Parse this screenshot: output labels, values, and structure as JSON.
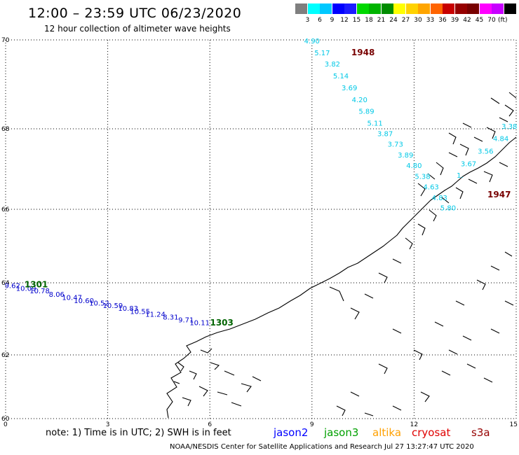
{
  "header": {
    "title": "12:00 – 23:59 UTC 06/23/2020",
    "subtitle": "12 hour collection of altimeter wave heights"
  },
  "legend": {
    "colors": [
      "#7f7f7f",
      "#00ffff",
      "#00c8ff",
      "#0000ff",
      "#1c1cff",
      "#00d800",
      "#00b400",
      "#008c00",
      "#ffff00",
      "#ffd200",
      "#ffa500",
      "#ff6400",
      "#c80000",
      "#960000",
      "#780000",
      "#ff00ff",
      "#c800ff",
      "#000000"
    ],
    "labels": [
      "3",
      "6",
      "9",
      "12",
      "15",
      "18",
      "21",
      "24",
      "27",
      "30",
      "33",
      "36",
      "39",
      "42",
      "45",
      "70"
    ],
    "unit": "(ft)"
  },
  "map": {
    "lon_range": [
      0,
      15
    ],
    "lat_range": [
      60,
      70
    ],
    "lat_ticks": [
      "70",
      "68",
      "66",
      "64",
      "62",
      "60"
    ],
    "lon_ticks": [
      "0",
      "3",
      "6",
      "9",
      "12",
      "15"
    ],
    "grid": "dotted"
  },
  "tracks": [
    {
      "satellite": "jason2",
      "color": "#0000cc",
      "times": [
        {
          "label": "1301",
          "lon": 0.9,
          "lat": 63.87,
          "color": "#006400"
        }
      ],
      "points": [
        {
          "v": "9.62",
          "lon": 0.2,
          "lat": 63.85
        },
        {
          "v": "10.09",
          "lon": 0.6,
          "lat": 63.78
        },
        {
          "v": "10.78",
          "lon": 1.0,
          "lat": 63.71
        },
        {
          "v": "8.06",
          "lon": 1.5,
          "lat": 63.61
        },
        {
          "v": "10.47",
          "lon": 1.95,
          "lat": 63.52
        },
        {
          "v": "10.60",
          "lon": 2.3,
          "lat": 63.44
        },
        {
          "v": "10.52",
          "lon": 2.75,
          "lat": 63.37
        },
        {
          "v": "10.59",
          "lon": 3.15,
          "lat": 63.3
        },
        {
          "v": "10.83",
          "lon": 3.6,
          "lat": 63.22
        },
        {
          "v": "10.55",
          "lon": 3.95,
          "lat": 63.14
        },
        {
          "v": "11.24",
          "lon": 4.4,
          "lat": 63.06
        },
        {
          "v": "8.31",
          "lon": 4.85,
          "lat": 62.98
        },
        {
          "v": "9.71",
          "lon": 5.3,
          "lat": 62.9
        }
      ]
    },
    {
      "satellite": "jason3",
      "color": "#0000cc",
      "times": [
        {
          "label": "1303",
          "lon": 6.35,
          "lat": 62.82,
          "color": "#006400"
        }
      ],
      "points": [
        {
          "v": "10.11",
          "lon": 5.7,
          "lat": 62.83
        }
      ]
    },
    {
      "satellite": "cryosat",
      "color": "#00c8e6",
      "times": [
        {
          "label": "1948",
          "lon": 10.5,
          "lat": 69.65,
          "color": "#780000"
        },
        {
          "label": "1947",
          "lon": 14.5,
          "lat": 66.3,
          "color": "#780000"
        }
      ],
      "points": [
        {
          "v": "4.90",
          "lon": 9.0,
          "lat": 69.92
        },
        {
          "v": "5.17",
          "lon": 9.3,
          "lat": 69.65
        },
        {
          "v": "3.82",
          "lon": 9.6,
          "lat": 69.4
        },
        {
          "v": "5.14",
          "lon": 9.85,
          "lat": 69.13
        },
        {
          "v": "3.69",
          "lon": 10.1,
          "lat": 68.87
        },
        {
          "v": "4.20",
          "lon": 10.4,
          "lat": 68.6
        },
        {
          "v": "5.89",
          "lon": 10.6,
          "lat": 68.34
        },
        {
          "v": "5.11",
          "lon": 10.85,
          "lat": 68.07
        },
        {
          "v": "3.87",
          "lon": 11.15,
          "lat": 67.82
        },
        {
          "v": "3.73",
          "lon": 11.45,
          "lat": 67.56
        },
        {
          "v": "3.89",
          "lon": 11.75,
          "lat": 67.29
        },
        {
          "v": "4.80",
          "lon": 12.0,
          "lat": 67.03
        },
        {
          "v": "5.38",
          "lon": 12.25,
          "lat": 66.76
        },
        {
          "v": "4.63",
          "lon": 12.5,
          "lat": 66.5
        },
        {
          "v": "4.83",
          "lon": 12.75,
          "lat": 66.23
        },
        {
          "v": "5.80",
          "lon": 13.0,
          "lat": 65.97
        }
      ]
    },
    {
      "satellite": "s3a",
      "color": "#00c8e6",
      "times": [],
      "points": [
        {
          "v": "3.38",
          "lon": 14.8,
          "lat": 68.0
        },
        {
          "v": "4.84",
          "lon": 14.55,
          "lat": 67.7
        },
        {
          "v": "3.56",
          "lon": 14.1,
          "lat": 67.38
        },
        {
          "v": "3.67",
          "lon": 13.6,
          "lat": 67.07
        },
        {
          "v": "1.",
          "lon": 13.35,
          "lat": 66.78
        }
      ]
    }
  ],
  "footer": {
    "note": "note: 1) Time is in UTC; 2) SWH is in feet",
    "satellites": [
      {
        "name": "jason2",
        "color": "#0000ff"
      },
      {
        "name": "jason3",
        "color": "#00a000"
      },
      {
        "name": "altika",
        "color": "#ffa000"
      },
      {
        "name": "cryosat",
        "color": "#e00000"
      },
      {
        "name": "s3a",
        "color": "#960000"
      }
    ],
    "credit": "NOAA/NESDIS Center for Satellite Applications and Research    Jul 27 13:27:47 UTC 2020"
  }
}
